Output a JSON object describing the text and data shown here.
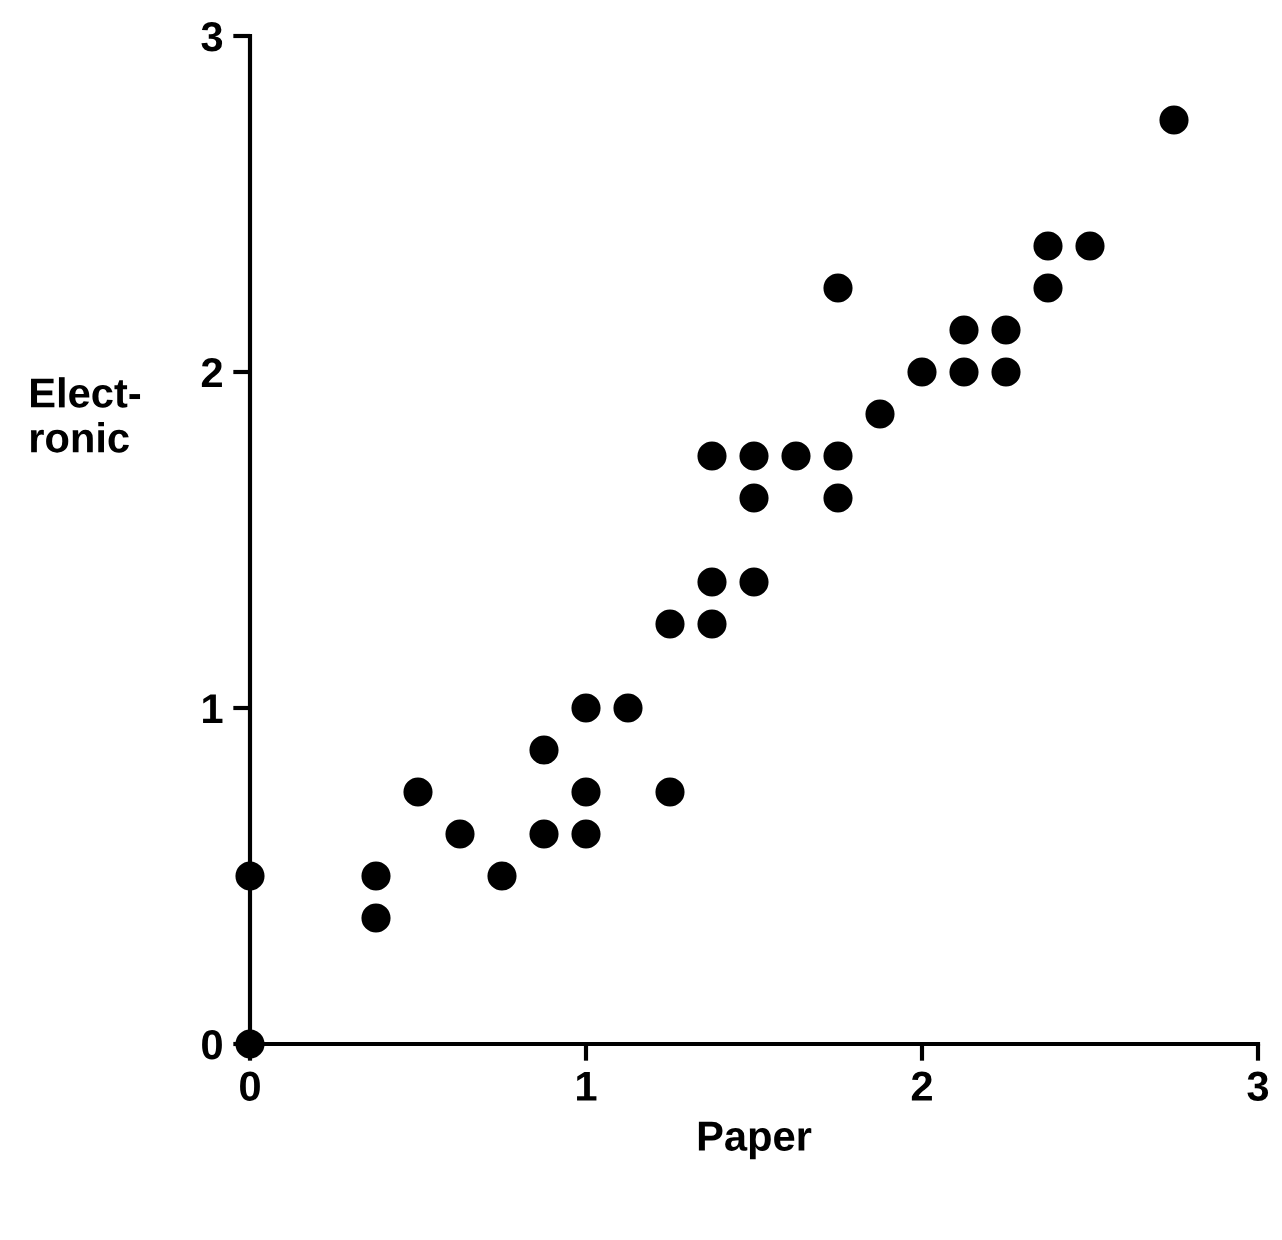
{
  "chart_data": {
    "type": "scatter",
    "xlabel": "Paper",
    "ylabel": "Elect-\nronic",
    "xlim": [
      0,
      3
    ],
    "ylim": [
      0,
      3
    ],
    "xticks": [
      0,
      1,
      2,
      3
    ],
    "yticks": [
      0,
      1,
      2,
      3
    ],
    "grid": false,
    "marker": "circle",
    "series": [
      {
        "color": "#000000",
        "x": [
          0,
          0,
          0.375,
          0.375,
          0.5,
          0.625,
          0.75,
          0.875,
          0.875,
          1,
          1,
          1,
          1.125,
          1.25,
          1.25,
          1.375,
          1.375,
          1.375,
          1.5,
          1.5,
          1.5,
          1.625,
          1.75,
          1.75,
          1.75,
          1.875,
          2,
          2.125,
          2.125,
          2.25,
          2.25,
          2.375,
          2.375,
          2.5,
          2.75
        ],
        "values": [
          0,
          0.5,
          0.5,
          0.375,
          0.75,
          0.625,
          0.5,
          0.875,
          0.625,
          1,
          0.75,
          0.625,
          1,
          1.25,
          0.75,
          1.75,
          1.375,
          1.25,
          1.75,
          1.625,
          1.375,
          1.75,
          2.25,
          1.75,
          1.625,
          1.875,
          2,
          2.125,
          2,
          2.125,
          2,
          2.375,
          2.25,
          2.375,
          2.75
        ]
      }
    ]
  }
}
